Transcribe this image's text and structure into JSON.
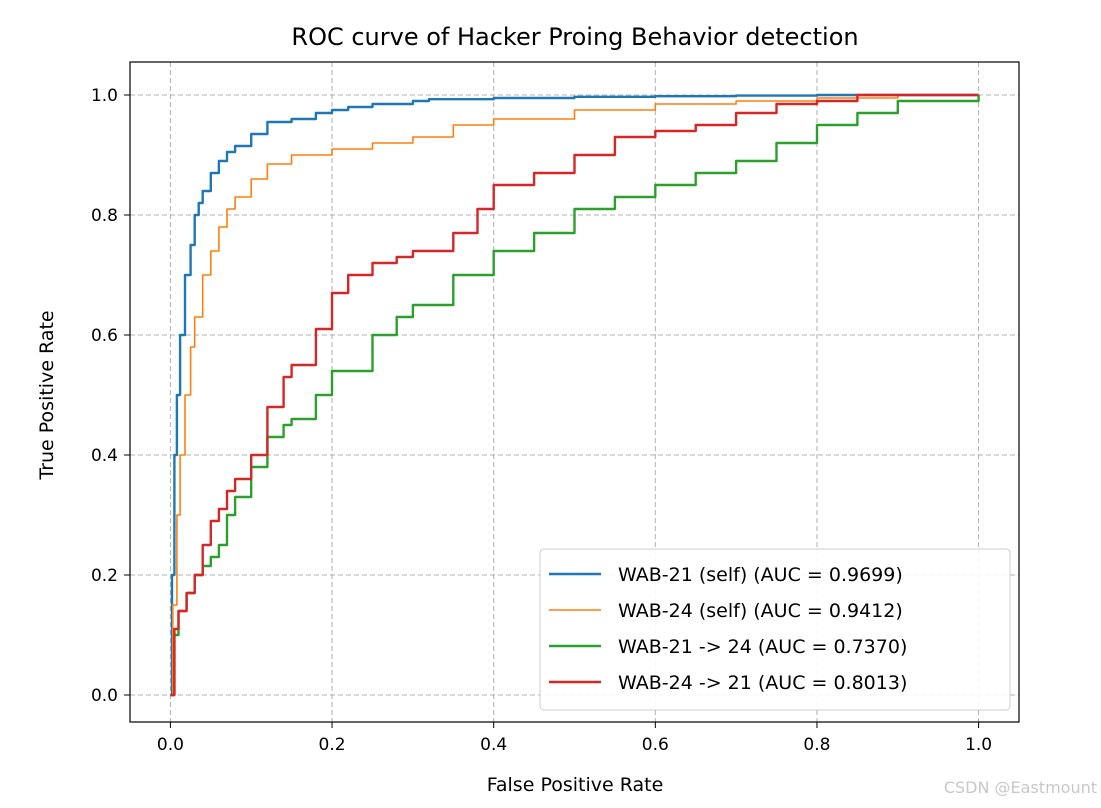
{
  "watermark": "CSDN @Eastmount",
  "chart_data": {
    "type": "line",
    "title": "ROC curve of Hacker Proing Behavior detection",
    "xlabel": "False Positive Rate",
    "ylabel": "True Positive Rate",
    "xlim": [
      -0.05,
      1.05
    ],
    "ylim": [
      -0.045,
      1.055
    ],
    "xticks": [
      {
        "value": 0.0,
        "label": "0.0"
      },
      {
        "value": 0.2,
        "label": "0.2"
      },
      {
        "value": 0.4,
        "label": "0.4"
      },
      {
        "value": 0.6,
        "label": "0.6"
      },
      {
        "value": 0.8,
        "label": "0.8"
      },
      {
        "value": 1.0,
        "label": "1.0"
      }
    ],
    "yticks": [
      {
        "value": 0.0,
        "label": "0.0"
      },
      {
        "value": 0.2,
        "label": "0.2"
      },
      {
        "value": 0.4,
        "label": "0.4"
      },
      {
        "value": 0.6,
        "label": "0.6"
      },
      {
        "value": 0.8,
        "label": "0.8"
      },
      {
        "value": 1.0,
        "label": "1.0"
      }
    ],
    "grid": true,
    "legend_position": "lower-right",
    "series": [
      {
        "name": "WAB-21 (self) (AUC = 0.9699)",
        "color": "#1f77b4",
        "x": [
          0.0,
          0.002,
          0.005,
          0.008,
          0.012,
          0.018,
          0.025,
          0.03,
          0.035,
          0.04,
          0.05,
          0.06,
          0.07,
          0.08,
          0.1,
          0.12,
          0.15,
          0.18,
          0.2,
          0.22,
          0.25,
          0.3,
          0.32,
          0.4,
          0.5,
          0.6,
          0.7,
          0.8,
          0.9,
          1.0
        ],
        "y": [
          0.0,
          0.2,
          0.4,
          0.5,
          0.6,
          0.7,
          0.75,
          0.8,
          0.82,
          0.84,
          0.87,
          0.89,
          0.905,
          0.915,
          0.935,
          0.955,
          0.96,
          0.97,
          0.975,
          0.98,
          0.985,
          0.99,
          0.993,
          0.995,
          0.997,
          0.998,
          0.999,
          1.0,
          1.0,
          1.0
        ]
      },
      {
        "name": "WAB-24 (self) (AUC = 0.9412)",
        "color": "#ff7f0e",
        "x": [
          0.0,
          0.003,
          0.008,
          0.012,
          0.018,
          0.025,
          0.03,
          0.04,
          0.05,
          0.06,
          0.07,
          0.08,
          0.1,
          0.12,
          0.15,
          0.2,
          0.25,
          0.3,
          0.35,
          0.4,
          0.5,
          0.6,
          0.7,
          0.8,
          0.9,
          1.0
        ],
        "y": [
          0.0,
          0.15,
          0.3,
          0.4,
          0.5,
          0.58,
          0.63,
          0.7,
          0.74,
          0.78,
          0.81,
          0.83,
          0.86,
          0.885,
          0.9,
          0.91,
          0.92,
          0.93,
          0.95,
          0.96,
          0.975,
          0.985,
          0.99,
          0.995,
          1.0,
          1.0
        ]
      },
      {
        "name": "WAB-21 -> 24 (AUC = 0.7370)",
        "color": "#2ca02c",
        "x": [
          0.0,
          0.005,
          0.01,
          0.02,
          0.03,
          0.04,
          0.05,
          0.06,
          0.07,
          0.08,
          0.1,
          0.12,
          0.14,
          0.15,
          0.18,
          0.2,
          0.25,
          0.28,
          0.3,
          0.35,
          0.4,
          0.45,
          0.5,
          0.55,
          0.6,
          0.65,
          0.7,
          0.75,
          0.8,
          0.85,
          0.9,
          1.0
        ],
        "y": [
          0.0,
          0.1,
          0.14,
          0.17,
          0.2,
          0.215,
          0.23,
          0.25,
          0.3,
          0.33,
          0.38,
          0.43,
          0.45,
          0.46,
          0.5,
          0.54,
          0.6,
          0.63,
          0.65,
          0.7,
          0.74,
          0.77,
          0.81,
          0.83,
          0.85,
          0.87,
          0.89,
          0.92,
          0.95,
          0.97,
          0.99,
          1.0
        ]
      },
      {
        "name": "WAB-24 -> 21 (AUC = 0.8013)",
        "color": "#d62728",
        "x": [
          0.0,
          0.005,
          0.01,
          0.02,
          0.03,
          0.04,
          0.05,
          0.06,
          0.07,
          0.08,
          0.1,
          0.12,
          0.14,
          0.15,
          0.18,
          0.2,
          0.22,
          0.25,
          0.28,
          0.3,
          0.35,
          0.38,
          0.4,
          0.45,
          0.5,
          0.55,
          0.6,
          0.65,
          0.7,
          0.75,
          0.8,
          0.85,
          0.9,
          1.0
        ],
        "y": [
          0.0,
          0.11,
          0.14,
          0.17,
          0.2,
          0.25,
          0.29,
          0.31,
          0.34,
          0.36,
          0.4,
          0.48,
          0.53,
          0.55,
          0.61,
          0.67,
          0.7,
          0.72,
          0.73,
          0.74,
          0.77,
          0.81,
          0.85,
          0.87,
          0.9,
          0.93,
          0.94,
          0.95,
          0.97,
          0.985,
          0.99,
          1.0,
          1.0,
          1.0
        ]
      }
    ]
  }
}
